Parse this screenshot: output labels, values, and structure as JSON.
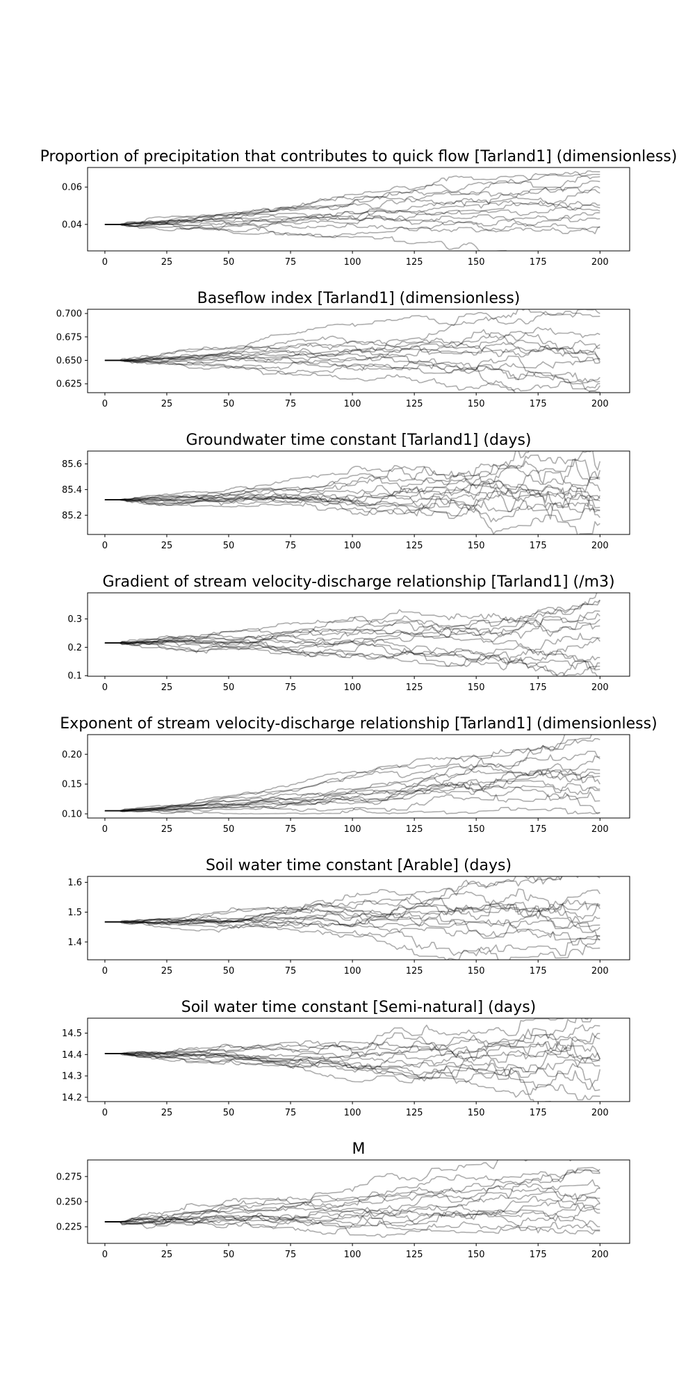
{
  "chart_data": [
    {
      "type": "line",
      "title": "Proportion of precipitation that contributes to quick flow [Tarland1] (dimensionless)",
      "xlim": [
        -7,
        212
      ],
      "xticks": [
        0,
        25,
        50,
        75,
        100,
        125,
        150,
        175,
        200
      ],
      "ylim": [
        0.0258,
        0.0705
      ],
      "yticks": [
        0.04,
        0.06
      ],
      "ytick_labels": [
        "0.04",
        "0.06"
      ],
      "x_start": 0,
      "x_end": 200,
      "initial_value": 0.04,
      "n_series": 14,
      "y_spread_at_end": [
        0.031,
        0.067
      ],
      "noise": 0.0012,
      "drift": 0.00013,
      "ramp": 0.1,
      "seed": 11
    },
    {
      "type": "line",
      "title": "Baseflow index [Tarland1] (dimensionless)",
      "xlim": [
        -7,
        212
      ],
      "xticks": [
        0,
        25,
        50,
        75,
        100,
        125,
        150,
        175,
        200
      ],
      "ylim": [
        0.6155,
        0.7045
      ],
      "yticks": [
        0.625,
        0.65,
        0.675,
        0.7
      ],
      "ytick_labels": [
        "0.625",
        "0.650",
        "0.675",
        "0.700"
      ],
      "x_start": 0,
      "x_end": 200,
      "initial_value": 0.65,
      "n_series": 14,
      "y_spread_at_end": [
        0.62,
        0.703
      ],
      "noise": 0.0022,
      "drift": 0.00012,
      "ramp": 0.8,
      "seed": 23
    },
    {
      "type": "line",
      "title": "Groundwater time constant [Tarland1] (days)",
      "xlim": [
        -7,
        212
      ],
      "xticks": [
        0,
        25,
        50,
        75,
        100,
        125,
        150,
        175,
        200
      ],
      "ylim": [
        85.05,
        85.7
      ],
      "yticks": [
        85.2,
        85.4,
        85.6
      ],
      "ytick_labels": [
        "85.2",
        "85.4",
        "85.6"
      ],
      "x_start": 0,
      "x_end": 200,
      "initial_value": 85.32,
      "n_series": 14,
      "y_spread_at_end": [
        85.07,
        85.67
      ],
      "noise": 0.014,
      "drift": 0.0007,
      "ramp": 2.2,
      "seed": 37
    },
    {
      "type": "line",
      "title": "Gradient of stream velocity-discharge relationship [Tarland1] (/m3)",
      "xlim": [
        -7,
        212
      ],
      "xticks": [
        0,
        25,
        50,
        75,
        100,
        125,
        150,
        175,
        200
      ],
      "ylim": [
        0.098,
        0.392
      ],
      "yticks": [
        0.1,
        0.2,
        0.3
      ],
      "ytick_labels": [
        "0.1",
        "0.2",
        "0.3"
      ],
      "x_start": 0,
      "x_end": 200,
      "initial_value": 0.215,
      "n_series": 14,
      "y_spread_at_end": [
        0.11,
        0.38
      ],
      "noise": 0.0085,
      "drift": 0.0,
      "ramp": 0.6,
      "seed": 53
    },
    {
      "type": "line",
      "title": "Exponent of stream velocity-discharge relationship [Tarland1] (dimensionless)",
      "xlim": [
        -7,
        212
      ],
      "xticks": [
        0,
        25,
        50,
        75,
        100,
        125,
        150,
        175,
        200
      ],
      "ylim": [
        0.093,
        0.233
      ],
      "yticks": [
        0.1,
        0.15,
        0.2
      ],
      "ytick_labels": [
        "0.10",
        "0.15",
        "0.20"
      ],
      "x_start": 0,
      "x_end": 200,
      "initial_value": 0.105,
      "n_series": 14,
      "y_spread_at_end": [
        0.103,
        0.228
      ],
      "noise": 0.0022,
      "drift": 0.00018,
      "ramp": 1.6,
      "floor": 0.1,
      "seed": 71
    },
    {
      "type": "line",
      "title": "Soil water time constant [Arable] (days)",
      "xlim": [
        -7,
        212
      ],
      "xticks": [
        0,
        25,
        50,
        75,
        100,
        125,
        150,
        175,
        200
      ],
      "ylim": [
        1.34,
        1.62
      ],
      "yticks": [
        1.4,
        1.5,
        1.6
      ],
      "ytick_labels": [
        "1.4",
        "1.5",
        "1.6"
      ],
      "x_start": 0,
      "x_end": 200,
      "initial_value": 1.467,
      "n_series": 14,
      "y_spread_at_end": [
        1.36,
        1.61
      ],
      "noise": 0.0075,
      "drift": 0.0001,
      "ramp": 1.0,
      "seed": 89
    },
    {
      "type": "line",
      "title": "Soil water time constant [Semi-natural] (days)",
      "xlim": [
        -7,
        212
      ],
      "xticks": [
        0,
        25,
        50,
        75,
        100,
        125,
        150,
        175,
        200
      ],
      "ylim": [
        14.18,
        14.57
      ],
      "yticks": [
        14.2,
        14.3,
        14.4,
        14.5
      ],
      "ytick_labels": [
        "14.2",
        "14.3",
        "14.4",
        "14.5"
      ],
      "x_start": 0,
      "x_end": 200,
      "initial_value": 14.405,
      "n_series": 14,
      "y_spread_at_end": [
        14.2,
        14.55
      ],
      "noise": 0.0095,
      "drift": 0.0,
      "ramp": 1.5,
      "seed": 97
    },
    {
      "type": "line",
      "title": "M",
      "xlim": [
        -7,
        212
      ],
      "xticks": [
        0,
        25,
        50,
        75,
        100,
        125,
        150,
        175,
        200
      ],
      "ylim": [
        0.2085,
        0.2915
      ],
      "yticks": [
        0.225,
        0.25,
        0.275
      ],
      "ytick_labels": [
        "0.225",
        "0.250",
        "0.275"
      ],
      "x_start": 0,
      "x_end": 200,
      "initial_value": 0.23,
      "n_series": 14,
      "y_spread_at_end": [
        0.215,
        0.288
      ],
      "noise": 0.0032,
      "drift": 9e-05,
      "ramp": 0.1,
      "seed": 131
    }
  ]
}
